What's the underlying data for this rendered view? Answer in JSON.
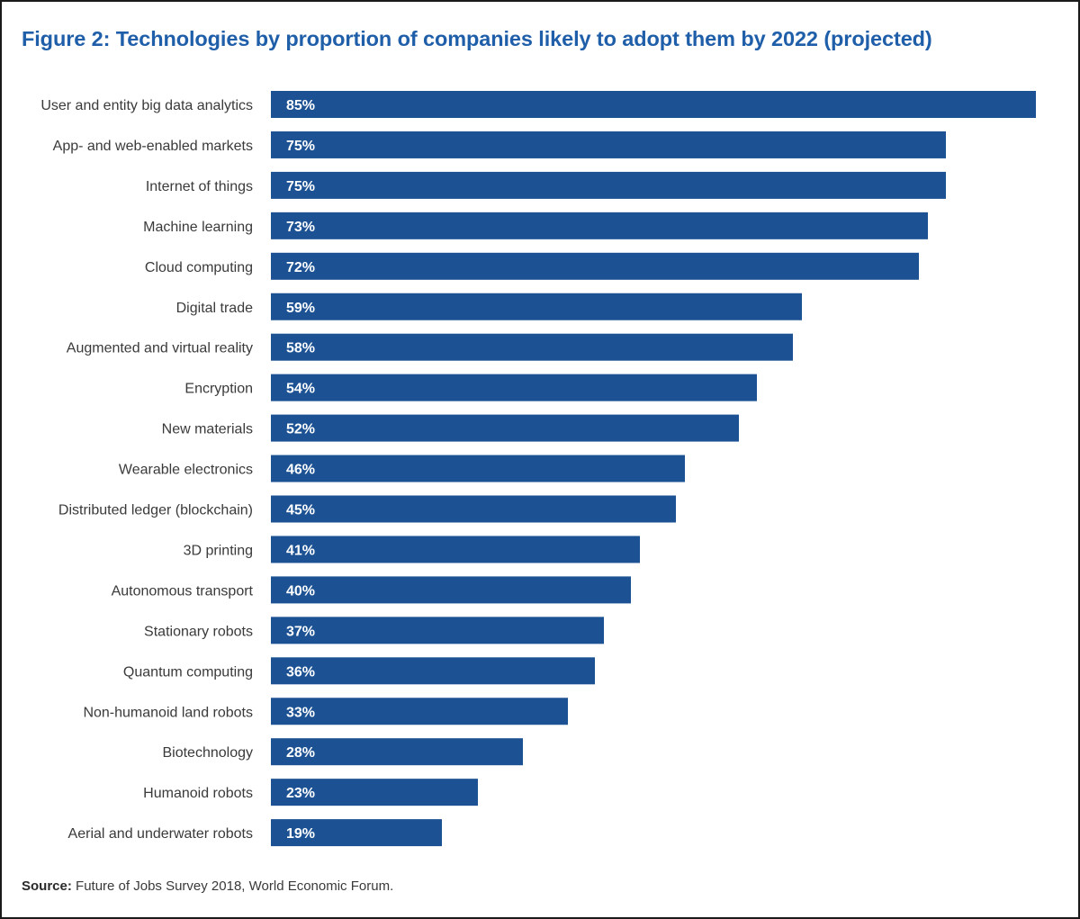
{
  "figure": {
    "title": "Figure 2: Technologies by proportion of companies likely to adopt them by 2022 (projected)",
    "source_label": "Source:",
    "source_text": "Future of Jobs Survey 2018, World Economic Forum."
  },
  "colors": {
    "title": "#1f5ea8",
    "bar": "#1c5293",
    "value_text": "#ffffff"
  },
  "chart_data": {
    "type": "bar",
    "orientation": "horizontal",
    "title": "Figure 2: Technologies by proportion of companies likely to adopt them by 2022 (projected)",
    "categories": [
      "User and entity big data analytics",
      "App- and web-enabled markets",
      "Internet of things",
      "Machine learning",
      "Cloud computing",
      "Digital trade",
      "Augmented and virtual reality",
      "Encryption",
      "New materials",
      "Wearable electronics",
      "Distributed ledger (blockchain)",
      "3D printing",
      "Autonomous transport",
      "Stationary robots",
      "Quantum computing",
      "Non-humanoid land robots",
      "Biotechnology",
      "Humanoid robots",
      "Aerial and underwater robots"
    ],
    "values": [
      85,
      75,
      75,
      73,
      72,
      59,
      58,
      54,
      52,
      46,
      45,
      41,
      40,
      37,
      36,
      33,
      28,
      23,
      19
    ],
    "value_labels": [
      "85%",
      "75%",
      "75%",
      "73%",
      "72%",
      "59%",
      "58%",
      "54%",
      "52%",
      "46%",
      "45%",
      "41%",
      "40%",
      "37%",
      "36%",
      "33%",
      "28%",
      "23%",
      "19%"
    ],
    "unit": "%",
    "xlim": [
      0,
      85
    ],
    "grid": false,
    "legend": "none",
    "xlabel": "",
    "ylabel": ""
  }
}
